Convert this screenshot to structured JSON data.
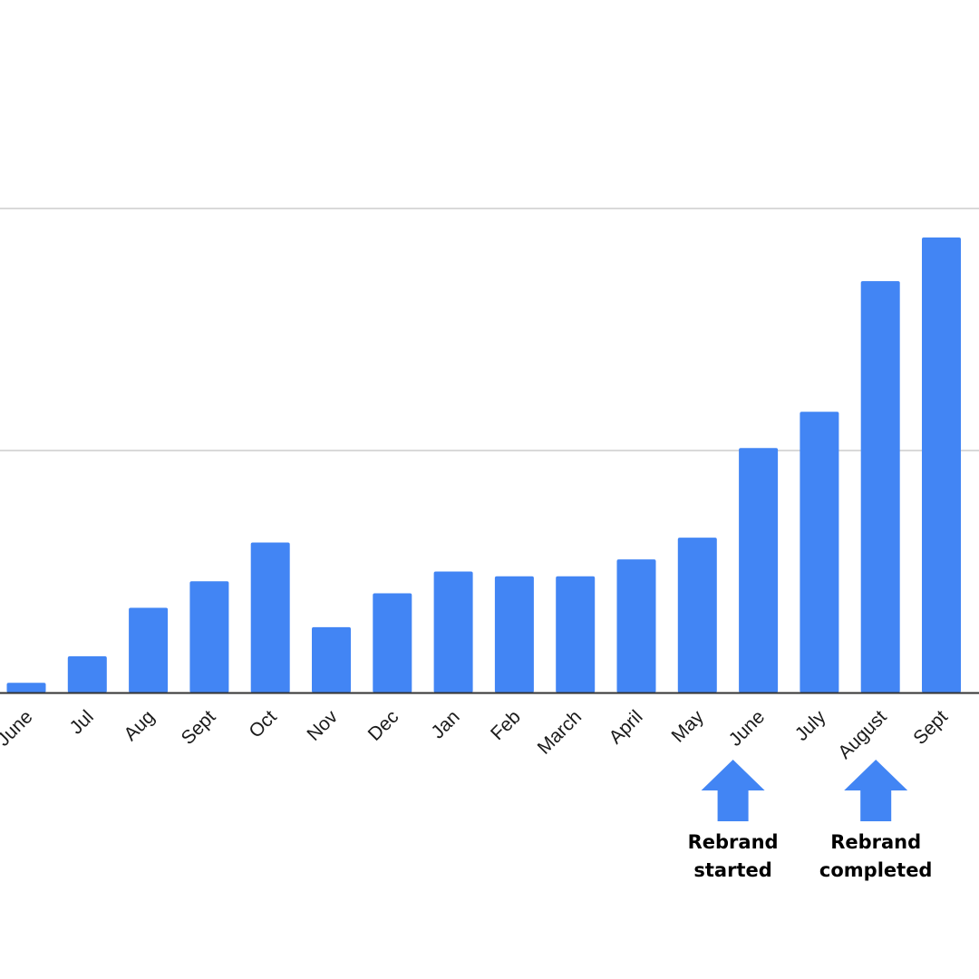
{
  "colors": {
    "bar": "#4285f4",
    "gridline": "#d9d9d9",
    "axis": "#333333",
    "annotation_arrow": "#4285f4",
    "text": "#000000"
  },
  "chart_data": {
    "type": "bar",
    "title": "",
    "xlabel": "",
    "ylabel": "",
    "ylim": [
      0,
      2.6
    ],
    "grid": true,
    "gridlines": [
      1,
      2
    ],
    "legend": "none",
    "categories": [
      "June",
      "Jul",
      "Aug",
      "Sept",
      "Oct",
      "Nov",
      "Dec",
      "Jan",
      "Feb",
      "March",
      "April",
      "May",
      "June",
      "July",
      "August",
      "Sept"
    ],
    "values": [
      0.04,
      0.15,
      0.35,
      0.46,
      0.62,
      0.27,
      0.41,
      0.5,
      0.48,
      0.48,
      0.55,
      0.64,
      1.01,
      1.16,
      1.7,
      1.88
    ],
    "annotations": [
      {
        "category_index": 12,
        "lines": [
          "Rebrand",
          "started"
        ]
      },
      {
        "category_index": 14,
        "lines": [
          "Rebrand",
          "completed"
        ]
      }
    ]
  }
}
